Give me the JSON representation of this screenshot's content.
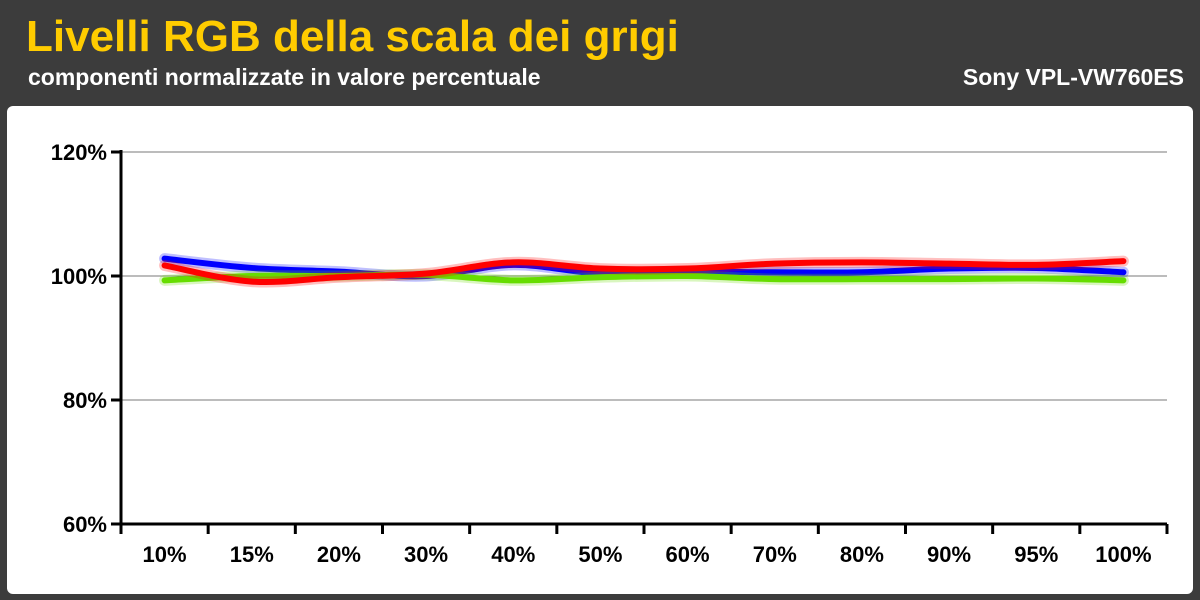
{
  "header": {
    "title": "Livelli RGB della scala dei grigi",
    "subtitle": "componenti normalizzate in valore percentuale",
    "device": "Sony VPL-VW760ES"
  },
  "colors": {
    "background": "#3c3c3c",
    "title": "#ffcc00",
    "red": "#ff0000",
    "green": "#66dd00",
    "blue": "#0000ff"
  },
  "chart_data": {
    "type": "line",
    "categories": [
      "10%",
      "15%",
      "20%",
      "30%",
      "40%",
      "50%",
      "60%",
      "70%",
      "80%",
      "90%",
      "95%",
      "100%"
    ],
    "ylim": [
      60,
      120
    ],
    "yticks": [
      60,
      80,
      100,
      120
    ],
    "ytick_labels": [
      "60%",
      "80%",
      "100%",
      "120%"
    ],
    "grid": true,
    "legend": "none",
    "series": [
      {
        "color": "#0000ff",
        "values": [
          102.8,
          101.3,
          100.7,
          100.0,
          101.8,
          100.4,
          100.7,
          100.6,
          100.6,
          101.2,
          101.3,
          100.6
        ]
      },
      {
        "color": "#66dd00",
        "values": [
          99.3,
          100.0,
          100.0,
          100.2,
          99.3,
          99.8,
          100.0,
          99.5,
          99.5,
          99.5,
          99.6,
          99.3
        ]
      },
      {
        "color": "#ff0000",
        "values": [
          101.7,
          99.1,
          99.8,
          100.4,
          102.2,
          101.2,
          101.2,
          102.0,
          102.2,
          102.0,
          101.8,
          102.4
        ]
      }
    ]
  }
}
